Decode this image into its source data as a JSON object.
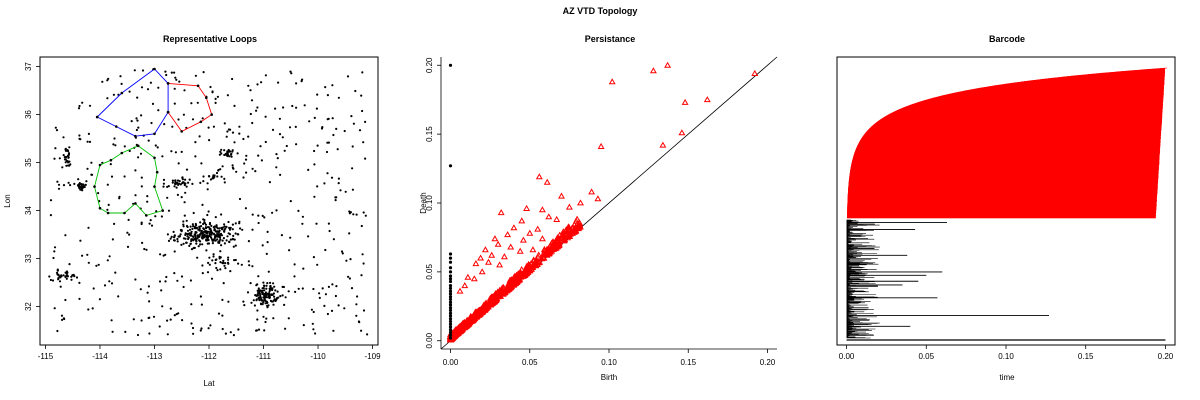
{
  "figure": {
    "title": "AZ VTD Topology"
  },
  "chart_data": [
    {
      "type": "scatter",
      "title": "Representative Loops",
      "xlabel": "Lat",
      "ylabel": "Lon",
      "xlim": [
        -115.1,
        -108.9
      ],
      "ylim": [
        31.2,
        37.2
      ],
      "xticks": [
        -115,
        -114,
        -113,
        -112,
        -111,
        -110,
        -109
      ],
      "yticks": [
        32,
        33,
        34,
        35,
        36,
        37
      ],
      "clusters": [
        {
          "cx": -112.05,
          "cy": 33.5,
          "sx": 0.28,
          "sy": 0.12,
          "n": 260
        },
        {
          "cx": -110.95,
          "cy": 32.25,
          "sx": 0.1,
          "sy": 0.12,
          "n": 110
        },
        {
          "cx": -111.65,
          "cy": 35.2,
          "sx": 0.06,
          "sy": 0.04,
          "n": 25
        },
        {
          "cx": -112.6,
          "cy": 34.55,
          "sx": 0.12,
          "sy": 0.06,
          "n": 35
        },
        {
          "cx": -114.35,
          "cy": 34.5,
          "sx": 0.05,
          "sy": 0.05,
          "n": 25
        },
        {
          "cx": -114.6,
          "cy": 35.1,
          "sx": 0.05,
          "sy": 0.1,
          "n": 25
        },
        {
          "cx": -114.65,
          "cy": 32.65,
          "sx": 0.12,
          "sy": 0.05,
          "n": 35
        },
        {
          "cx": -111.9,
          "cy": 34.7,
          "sx": 0.08,
          "sy": 0.06,
          "n": 15
        },
        {
          "cx": -111.8,
          "cy": 32.9,
          "sx": 0.15,
          "sy": 0.1,
          "n": 30
        }
      ],
      "scatter_extent": {
        "x": [
          -114.9,
          -109.1
        ],
        "y": [
          31.4,
          36.95
        ],
        "n": 520
      },
      "loops": [
        {
          "color": "#0000ff",
          "points": [
            [
              -114.05,
              35.95
            ],
            [
              -113.6,
              36.45
            ],
            [
              -113.0,
              36.95
            ],
            [
              -112.75,
              36.65
            ],
            [
              -112.75,
              36.05
            ],
            [
              -113.0,
              35.6
            ],
            [
              -113.35,
              35.55
            ],
            [
              -113.7,
              35.75
            ],
            [
              -114.05,
              35.95
            ]
          ]
        },
        {
          "color": "#ff0000",
          "points": [
            [
              -112.75,
              36.65
            ],
            [
              -112.2,
              36.6
            ],
            [
              -112.05,
              36.35
            ],
            [
              -111.95,
              36.0
            ],
            [
              -112.15,
              35.85
            ],
            [
              -112.5,
              35.65
            ],
            [
              -112.75,
              36.05
            ]
          ]
        },
        {
          "color": "#00c000",
          "points": [
            [
              -113.3,
              35.35
            ],
            [
              -113.0,
              35.1
            ],
            [
              -112.95,
              34.8
            ],
            [
              -113.0,
              34.5
            ],
            [
              -112.85,
              34.0
            ],
            [
              -113.15,
              33.9
            ],
            [
              -113.35,
              34.15
            ],
            [
              -113.55,
              33.95
            ],
            [
              -113.85,
              33.95
            ],
            [
              -114.0,
              34.05
            ],
            [
              -114.1,
              34.5
            ],
            [
              -114.0,
              34.95
            ],
            [
              -113.8,
              35.05
            ],
            [
              -113.6,
              35.2
            ],
            [
              -113.3,
              35.35
            ]
          ]
        }
      ]
    },
    {
      "type": "scatter",
      "title": "Persistance",
      "xlabel": "Birth",
      "ylabel": "Death",
      "xlim": [
        -0.006,
        0.206
      ],
      "ylim": [
        -0.006,
        0.206
      ],
      "xticks": [
        0,
        0.05,
        0.1,
        0.15,
        0.2
      ],
      "yticks": [
        0,
        0.05,
        0.1,
        0.15,
        0.2
      ],
      "dim0_color": "#000000",
      "dim1_color": "#ff0000",
      "dim0_points": [
        [
          0,
          0.2
        ],
        [
          0,
          0.127
        ],
        [
          0,
          0.063
        ],
        [
          0,
          0.06
        ],
        [
          0,
          0.057
        ],
        [
          0,
          0.053
        ],
        [
          0,
          0.05
        ],
        [
          0,
          0.047
        ],
        [
          0,
          0.045
        ],
        [
          0,
          0.043
        ],
        [
          0,
          0.04
        ],
        [
          0,
          0.038
        ],
        [
          0,
          0.036
        ],
        [
          0,
          0.034
        ],
        [
          0,
          0.032
        ],
        [
          0,
          0.03
        ],
        [
          0,
          0.028
        ],
        [
          0,
          0.026
        ],
        [
          0,
          0.024
        ],
        [
          0,
          0.022
        ],
        [
          0,
          0.02
        ],
        [
          0,
          0.018
        ],
        [
          0,
          0.016
        ],
        [
          0,
          0.014
        ],
        [
          0,
          0.012
        ],
        [
          0,
          0.01
        ],
        [
          0,
          0.008
        ],
        [
          0,
          0.006
        ],
        [
          0,
          0.004
        ],
        [
          0,
          0.002
        ]
      ],
      "dim1_outliers": [
        [
          0.137,
          0.2
        ],
        [
          0.128,
          0.196
        ],
        [
          0.192,
          0.194
        ],
        [
          0.102,
          0.188
        ],
        [
          0.162,
          0.175
        ],
        [
          0.148,
          0.173
        ],
        [
          0.146,
          0.151
        ],
        [
          0.134,
          0.142
        ],
        [
          0.095,
          0.141
        ],
        [
          0.056,
          0.119
        ],
        [
          0.061,
          0.115
        ],
        [
          0.089,
          0.108
        ],
        [
          0.093,
          0.103
        ],
        [
          0.07,
          0.105
        ],
        [
          0.082,
          0.1
        ],
        [
          0.075,
          0.097
        ],
        [
          0.058,
          0.095
        ],
        [
          0.048,
          0.096
        ],
        [
          0.062,
          0.09
        ],
        [
          0.067,
          0.088
        ],
        [
          0.032,
          0.093
        ],
        [
          0.045,
          0.087
        ],
        [
          0.04,
          0.082
        ],
        [
          0.055,
          0.081
        ],
        [
          0.036,
          0.077
        ],
        [
          0.05,
          0.078
        ],
        [
          0.028,
          0.074
        ],
        [
          0.046,
          0.073
        ],
        [
          0.058,
          0.074
        ],
        [
          0.03,
          0.07
        ],
        [
          0.038,
          0.068
        ],
        [
          0.022,
          0.066
        ],
        [
          0.044,
          0.065
        ],
        [
          0.052,
          0.066
        ],
        [
          0.019,
          0.06
        ],
        [
          0.026,
          0.062
        ],
        [
          0.034,
          0.061
        ],
        [
          0.016,
          0.056
        ],
        [
          0.024,
          0.057
        ],
        [
          0.031,
          0.055
        ],
        [
          0.011,
          0.046
        ],
        [
          0.015,
          0.045
        ],
        [
          0.02,
          0.05
        ],
        [
          0.009,
          0.04
        ],
        [
          0.006,
          0.036
        ]
      ],
      "dim1_cloud_n": 700
    },
    {
      "type": "bar",
      "title": "Barcode",
      "xlabel": "time",
      "ylabel": "",
      "xlim": [
        -0.006,
        0.206
      ],
      "xticks": [
        0,
        0.05,
        0.1,
        0.15,
        0.2
      ],
      "dim1_color": "#ff0000",
      "dim0_color": "#000000",
      "dim1_bars": 780,
      "dim0_bars": 420,
      "dim0_long": [
        0.127,
        0.063,
        0.06,
        0.057,
        0.05,
        0.045,
        0.043,
        0.04,
        0.038,
        0.035
      ],
      "last_bar": [
        0,
        0.2
      ]
    }
  ]
}
